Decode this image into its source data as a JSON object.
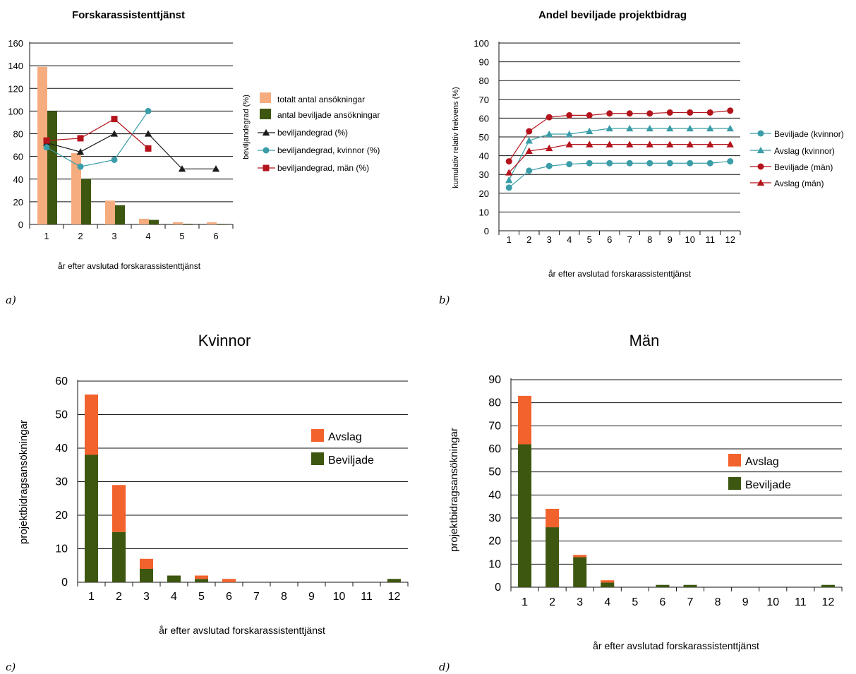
{
  "panel_labels": [
    "a)",
    "b)",
    "c)",
    "d)"
  ],
  "colors": {
    "peach": "#f5ad80",
    "dark_green": "#3d5710",
    "black": "#1a1a1a",
    "teal": "#3a9da8",
    "crimson": "#b4131c",
    "orange": "#f2622d"
  },
  "chart_data": [
    {
      "type": "bar",
      "title": "Forskarassistenttjänst",
      "xlabel": "år efter avslutad forskarassistenttjänst",
      "ylabel": "beviljandegrad (%)",
      "categories": [
        "1",
        "2",
        "3",
        "4",
        "5",
        "6"
      ],
      "ylim": [
        0,
        160
      ],
      "yticks": [
        "0",
        "20",
        "40",
        "60",
        "80",
        "100",
        "120",
        "140",
        "160"
      ],
      "grid": true,
      "legend": "right",
      "bar_series": [
        {
          "name": "totalt antal ansökningar",
          "values": [
            139,
            63,
            21,
            5,
            2,
            2
          ]
        },
        {
          "name": "antal beviljade ansökningar",
          "values": [
            100,
            40,
            17,
            4,
            0.6,
            0.5
          ]
        }
      ],
      "line_series": [
        {
          "name": "beviljandegrad (%)",
          "marker": "triangle",
          "values": [
            72,
            64,
            80,
            80,
            49,
            49
          ]
        },
        {
          "name": "beviljandegrad, kvinnor (%)",
          "marker": "circle",
          "values": [
            68,
            51,
            57,
            100,
            null,
            null
          ]
        },
        {
          "name": "beviljandegrad, män (%)",
          "marker": "square",
          "values": [
            74,
            76,
            93,
            67,
            null,
            null
          ]
        }
      ]
    },
    {
      "type": "line",
      "title": "Andel beviljade projektbidrag",
      "xlabel": "år efter avslutad forskarassistenttjänst",
      "ylabel": "kumulativ relativ frekvens (%)",
      "categories": [
        "1",
        "2",
        "3",
        "4",
        "5",
        "6",
        "7",
        "8",
        "9",
        "10",
        "11",
        "12"
      ],
      "ylim": [
        0,
        100
      ],
      "yticks": [
        "0",
        "10",
        "20",
        "30",
        "40",
        "50",
        "60",
        "70",
        "80",
        "90",
        "100"
      ],
      "grid": true,
      "legend": "right",
      "series": [
        {
          "name": "Beviljade (kvinnor)",
          "marker": "circle",
          "values": [
            23,
            32,
            34.5,
            35.5,
            36,
            36,
            36,
            36,
            36,
            36,
            36,
            37
          ]
        },
        {
          "name": "Avslag (kvinnor)",
          "marker": "triangle",
          "values": [
            27,
            48,
            51.5,
            51.5,
            53,
            54.5,
            54.5,
            54.5,
            54.5,
            54.5,
            54.5,
            54.5
          ]
        },
        {
          "name": "Beviljade (män)",
          "marker": "circle",
          "values": [
            37,
            53,
            60.5,
            61.5,
            61.5,
            62.5,
            62.5,
            62.5,
            63,
            63,
            63,
            64
          ]
        },
        {
          "name": "Avslag (män)",
          "marker": "triangle",
          "values": [
            31,
            42.5,
            44,
            46,
            46,
            46,
            46,
            46,
            46,
            46,
            46,
            46
          ]
        }
      ]
    },
    {
      "type": "bar",
      "stacked": true,
      "title": "Kvinnor",
      "xlabel": "år efter avslutad forskarassistenttjänst",
      "ylabel": "projektbidragsansökningar",
      "categories": [
        "1",
        "2",
        "3",
        "4",
        "5",
        "6",
        "7",
        "8",
        "9",
        "10",
        "11",
        "12"
      ],
      "ylim": [
        0,
        60
      ],
      "yticks": [
        "0",
        "10",
        "20",
        "30",
        "40",
        "50",
        "60"
      ],
      "grid": true,
      "legend": "right",
      "legend_order": [
        "Avslag",
        "Beviljade"
      ],
      "series": [
        {
          "name": "Beviljade",
          "values": [
            38,
            15,
            4,
            2,
            1,
            0,
            0,
            0,
            0,
            0,
            0,
            1
          ]
        },
        {
          "name": "Avslag",
          "values": [
            18,
            14,
            3,
            0,
            1,
            1,
            0,
            0,
            0,
            0,
            0,
            0
          ]
        }
      ]
    },
    {
      "type": "bar",
      "stacked": true,
      "title": "Män",
      "xlabel": "år efter avslutad forskarassistenttjänst",
      "ylabel": "projektbidragsansökningar",
      "categories": [
        "1",
        "2",
        "3",
        "4",
        "5",
        "6",
        "7",
        "8",
        "9",
        "10",
        "11",
        "12"
      ],
      "ylim": [
        0,
        90
      ],
      "yticks": [
        "0",
        "10",
        "20",
        "30",
        "40",
        "50",
        "60",
        "70",
        "80",
        "90"
      ],
      "grid": true,
      "legend": "right",
      "legend_order": [
        "Avslag",
        "Beviljade"
      ],
      "series": [
        {
          "name": "Beviljade",
          "values": [
            62,
            26,
            13,
            2,
            0,
            1,
            1,
            0,
            0,
            0,
            0,
            1
          ]
        },
        {
          "name": "Avslag",
          "values": [
            21,
            8,
            1,
            1,
            0,
            0,
            0,
            0,
            0,
            0,
            0,
            0
          ]
        }
      ]
    }
  ]
}
